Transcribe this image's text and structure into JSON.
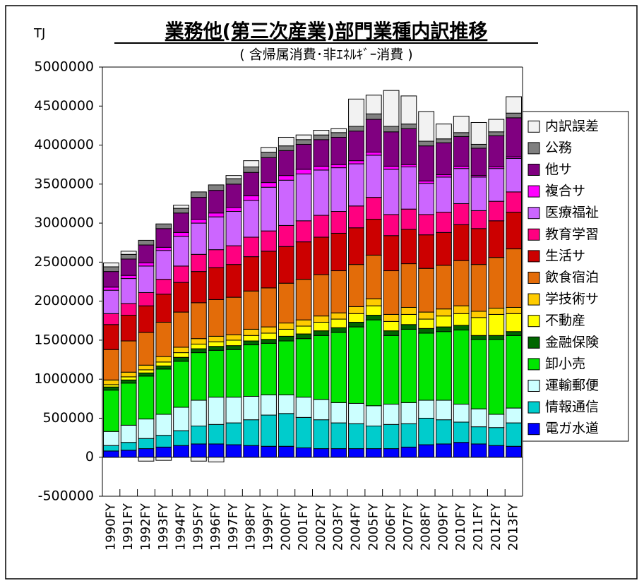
{
  "chart_data": {
    "type": "stacked-bar",
    "title": "業務他(第三次産業)部門業種内訳推移",
    "subtitle": "( 含帰属消費･非ｴﾈﾙｷﾞｰ消費 )",
    "y_label": "TJ",
    "categories": [
      "1990FY",
      "1991FY",
      "1992FY",
      "1993FY",
      "1994FY",
      "1995FY",
      "1996FY",
      "1997FY",
      "1998FY",
      "1999FY",
      "2000FY",
      "2001FY",
      "2002FY",
      "2003FY",
      "2004FY",
      "2005FY",
      "2006FY",
      "2007FY",
      "2008FY",
      "2009FY",
      "2010FY",
      "2011FY",
      "2012FY",
      "2013FY"
    ],
    "ylim": [
      -500000,
      5000000
    ],
    "yticks": [
      -500000,
      0,
      500000,
      1000000,
      1500000,
      2000000,
      2500000,
      3000000,
      3500000,
      4000000,
      4500000,
      5000000
    ],
    "legend": "right",
    "series": [
      {
        "name": "電ガ水道",
        "color": "#0000ff",
        "values": [
          80000,
          90000,
          110000,
          130000,
          150000,
          170000,
          170000,
          160000,
          150000,
          140000,
          140000,
          120000,
          110000,
          110000,
          110000,
          110000,
          110000,
          130000,
          160000,
          170000,
          190000,
          170000,
          150000,
          140000
        ]
      },
      {
        "name": "情報通信",
        "color": "#00cccc",
        "values": [
          70000,
          100000,
          130000,
          150000,
          190000,
          230000,
          250000,
          280000,
          330000,
          400000,
          420000,
          390000,
          370000,
          330000,
          320000,
          290000,
          310000,
          300000,
          340000,
          310000,
          260000,
          220000,
          230000,
          300000
        ]
      },
      {
        "name": "運輸郵便",
        "color": "#ccffff",
        "values": [
          180000,
          220000,
          250000,
          270000,
          300000,
          330000,
          350000,
          330000,
          300000,
          260000,
          240000,
          260000,
          260000,
          260000,
          260000,
          260000,
          260000,
          270000,
          230000,
          250000,
          230000,
          230000,
          170000,
          190000
        ]
      },
      {
        "name": "卸小売",
        "color": "#00e600",
        "values": [
          530000,
          540000,
          550000,
          580000,
          590000,
          610000,
          600000,
          610000,
          660000,
          660000,
          690000,
          750000,
          820000,
          900000,
          980000,
          1100000,
          880000,
          940000,
          860000,
          880000,
          950000,
          890000,
          960000,
          930000
        ]
      },
      {
        "name": "金融保険",
        "color": "#006600",
        "values": [
          40000,
          40000,
          40000,
          40000,
          50000,
          50000,
          50000,
          50000,
          50000,
          50000,
          60000,
          60000,
          60000,
          60000,
          60000,
          60000,
          60000,
          60000,
          60000,
          60000,
          60000,
          50000,
          50000,
          50000
        ]
      },
      {
        "name": "不動産",
        "color": "#ffff00",
        "values": [
          30000,
          40000,
          40000,
          50000,
          60000,
          60000,
          60000,
          70000,
          70000,
          80000,
          90000,
          100000,
          110000,
          110000,
          110000,
          120000,
          120000,
          130000,
          120000,
          140000,
          150000,
          230000,
          270000,
          230000
        ]
      },
      {
        "name": "学技術サ",
        "color": "#ffcc00",
        "values": [
          60000,
          60000,
          60000,
          70000,
          70000,
          70000,
          70000,
          70000,
          80000,
          80000,
          80000,
          80000,
          80000,
          80000,
          90000,
          90000,
          90000,
          90000,
          90000,
          90000,
          100000,
          80000,
          80000,
          80000
        ]
      },
      {
        "name": "飲食宿泊",
        "color": "#e36c09",
        "values": [
          390000,
          400000,
          420000,
          440000,
          450000,
          460000,
          470000,
          480000,
          490000,
          500000,
          510000,
          520000,
          530000,
          540000,
          540000,
          560000,
          560000,
          560000,
          560000,
          560000,
          580000,
          600000,
          650000,
          750000
        ]
      },
      {
        "name": "生活サ",
        "color": "#cc0000",
        "values": [
          320000,
          330000,
          340000,
          360000,
          380000,
          400000,
          410000,
          420000,
          440000,
          470000,
          470000,
          480000,
          480000,
          480000,
          470000,
          460000,
          450000,
          440000,
          430000,
          420000,
          460000,
          460000,
          470000,
          470000
        ]
      },
      {
        "name": "教育学習",
        "color": "#ff0080",
        "values": [
          140000,
          150000,
          170000,
          190000,
          210000,
          220000,
          230000,
          240000,
          250000,
          260000,
          270000,
          270000,
          280000,
          280000,
          280000,
          280000,
          270000,
          260000,
          260000,
          260000,
          270000,
          230000,
          250000,
          260000
        ]
      },
      {
        "name": "医療福祉",
        "color": "#cc66ff",
        "values": [
          300000,
          320000,
          340000,
          370000,
          380000,
          400000,
          420000,
          440000,
          470000,
          560000,
          580000,
          600000,
          580000,
          560000,
          540000,
          540000,
          580000,
          540000,
          400000,
          450000,
          450000,
          430000,
          420000,
          430000
        ]
      },
      {
        "name": "複合サ",
        "color": "#ff00ff",
        "values": [
          40000,
          40000,
          40000,
          40000,
          50000,
          50000,
          50000,
          50000,
          60000,
          60000,
          60000,
          60000,
          50000,
          40000,
          40000,
          40000,
          40000,
          30000,
          30000,
          30000,
          30000,
          20000,
          20000,
          20000
        ]
      },
      {
        "name": "他サ",
        "color": "#800080",
        "values": [
          200000,
          210000,
          230000,
          240000,
          250000,
          280000,
          290000,
          300000,
          300000,
          320000,
          320000,
          320000,
          340000,
          350000,
          380000,
          420000,
          440000,
          460000,
          450000,
          410000,
          380000,
          350000,
          400000,
          500000
        ]
      },
      {
        "name": "公務",
        "color": "#808080",
        "values": [
          60000,
          60000,
          60000,
          60000,
          60000,
          70000,
          70000,
          70000,
          70000,
          70000,
          60000,
          60000,
          60000,
          60000,
          60000,
          70000,
          70000,
          60000,
          60000,
          50000,
          50000,
          50000,
          50000,
          60000
        ]
      },
      {
        "name": "内訳誤差",
        "color": "#f2f2f2",
        "values": [
          50000,
          40000,
          -50000,
          -40000,
          40000,
          -50000,
          -60000,
          40000,
          80000,
          60000,
          110000,
          60000,
          60000,
          50000,
          350000,
          240000,
          460000,
          360000,
          380000,
          190000,
          210000,
          280000,
          160000,
          210000
        ]
      }
    ]
  }
}
